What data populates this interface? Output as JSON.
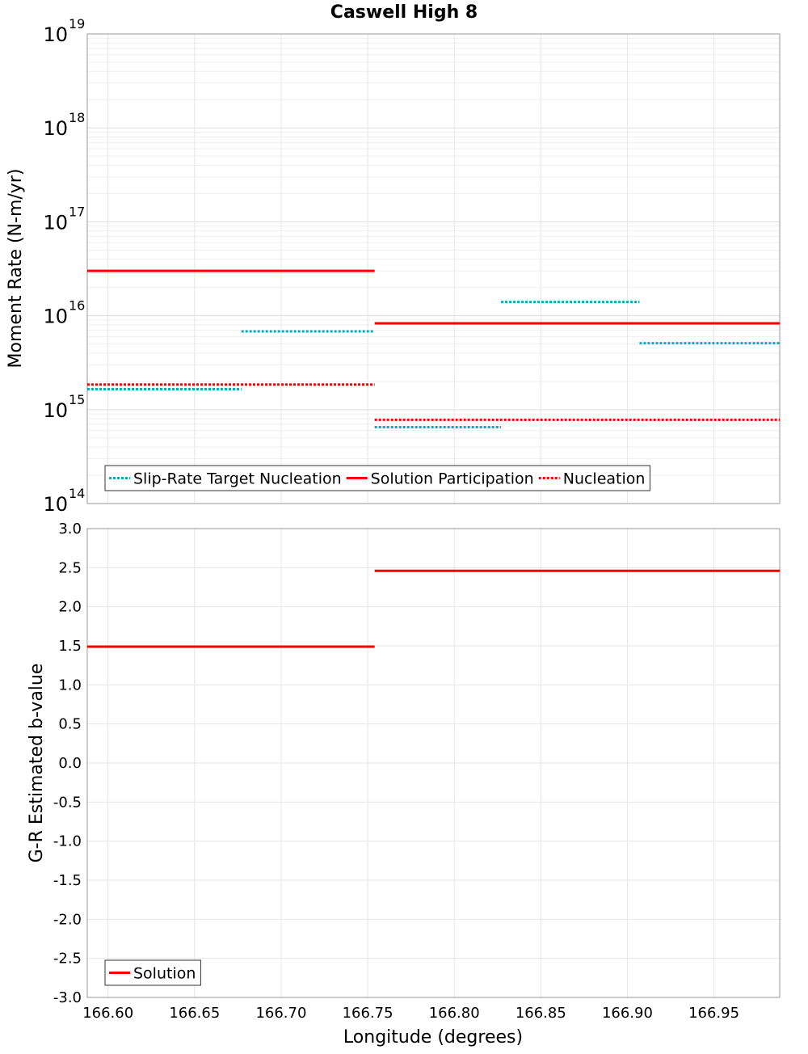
{
  "chart_data": [
    {
      "type": "line",
      "title": "Caswell High 8",
      "xlabel": "",
      "ylabel": "Moment Rate (N-m/yr)",
      "yscale": "log",
      "xlim": [
        166.588,
        166.988
      ],
      "ylim": [
        100000000000000.0,
        1e+19
      ],
      "y_tick_labels": [
        {
          "base": "10",
          "exp": "14"
        },
        {
          "base": "10",
          "exp": "15"
        },
        {
          "base": "10",
          "exp": "16"
        },
        {
          "base": "10",
          "exp": "17"
        },
        {
          "base": "10",
          "exp": "18"
        },
        {
          "base": "10",
          "exp": "19"
        }
      ],
      "grid": true,
      "legend_position": "bottom-left",
      "series": [
        {
          "name": "Slip-Rate Target Nucleation",
          "color": "#00b0c0",
          "style": "dotted",
          "segments": [
            {
              "x": [
                166.588,
                166.677
              ],
              "y": 1650000000000000.0
            },
            {
              "x": [
                166.677,
                166.754
              ],
              "y": 6800000000000000.0
            },
            {
              "x": [
                166.754,
                166.827
              ],
              "y": 650000000000000.0
            },
            {
              "x": [
                166.827,
                166.907
              ],
              "y": 1.4e+16
            },
            {
              "x": [
                166.907,
                166.988
              ],
              "y": 5100000000000000.0
            }
          ]
        },
        {
          "name": "Solution Participation",
          "color": "#ff0000",
          "style": "solid",
          "segments": [
            {
              "x": [
                166.588,
                166.754
              ],
              "y": 3e+16
            },
            {
              "x": [
                166.754,
                166.988
              ],
              "y": 8300000000000000.0
            }
          ]
        },
        {
          "name": "Nucleation",
          "color": "#ff0000",
          "style": "dotted",
          "segments": [
            {
              "x": [
                166.588,
                166.754
              ],
              "y": 1850000000000000.0
            },
            {
              "x": [
                166.754,
                166.988
              ],
              "y": 780000000000000.0
            }
          ]
        }
      ]
    },
    {
      "type": "line",
      "title": "",
      "xlabel": "Longitude (degrees)",
      "ylabel": "G-R Estimated b-value",
      "xlim": [
        166.588,
        166.988
      ],
      "ylim": [
        -3.0,
        3.0
      ],
      "x_ticks": [
        "166.60",
        "166.65",
        "166.70",
        "166.75",
        "166.80",
        "166.85",
        "166.90",
        "166.95"
      ],
      "y_ticks": [
        "3.0",
        "2.5",
        "2.0",
        "1.5",
        "1.0",
        "0.5",
        "0.0",
        "-0.5",
        "-1.0",
        "-1.5",
        "-2.0",
        "-2.5",
        "-3.0"
      ],
      "grid": true,
      "legend_position": "bottom-left",
      "series": [
        {
          "name": "Solution",
          "color": "#ff0000",
          "style": "solid",
          "segments": [
            {
              "x": [
                166.588,
                166.754
              ],
              "y": 1.49
            },
            {
              "x": [
                166.754,
                166.988
              ],
              "y": 2.46
            }
          ]
        }
      ]
    }
  ]
}
